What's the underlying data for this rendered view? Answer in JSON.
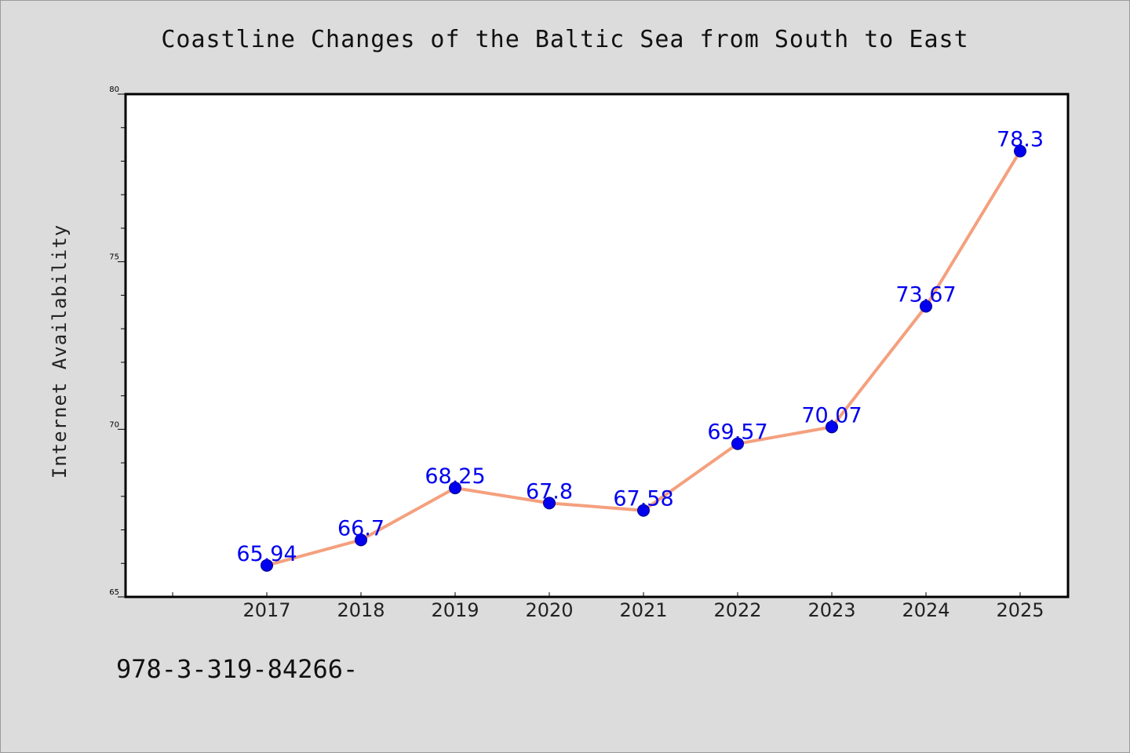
{
  "chart_data": {
    "type": "line",
    "title": "Coastline Changes of the Baltic Sea from South to East",
    "xlabel": "",
    "ylabel": "Internet Availability",
    "categories": [
      "2017",
      "2018",
      "2019",
      "2020",
      "2021",
      "2022",
      "2023",
      "2024",
      "2025"
    ],
    "values": [
      65.94,
      66.7,
      68.25,
      67.8,
      67.58,
      69.57,
      70.07,
      73.67,
      78.3
    ],
    "data_labels": [
      "65.94",
      "66.7",
      "68.25",
      "67.8",
      "67.58",
      "69.57",
      "70.07",
      "73.67",
      "78.3"
    ],
    "ylim": [
      65,
      80
    ],
    "y_major_ticks": [
      65,
      70,
      75,
      80
    ],
    "y_tick_labels": [
      "65",
      "70",
      "75",
      "80"
    ],
    "grid": false,
    "legend": "none",
    "colors": {
      "line": "#f4a07e",
      "marker": "#0000ee",
      "marker_edge": "#00008b",
      "data_label": "#0000ee",
      "plot_background": "#ffffff",
      "page_background": "#dcdcdc"
    }
  },
  "footer": {
    "code": "978-3-319-84266-"
  }
}
